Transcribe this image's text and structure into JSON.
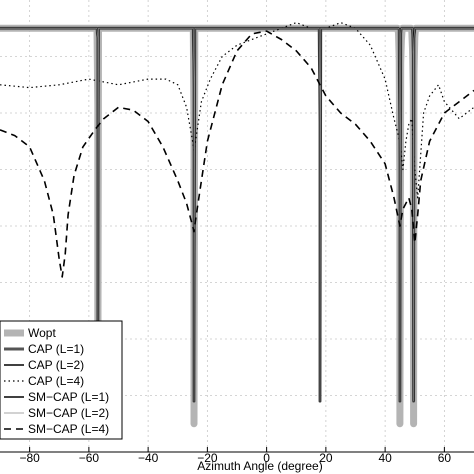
{
  "chart_data": {
    "type": "line",
    "xlabel": "Azimuth Angle (degree)",
    "ylabel": "",
    "title": "",
    "xlim": [
      -90,
      70
    ],
    "ylim": [
      -75,
      5
    ],
    "xticks": [
      -80,
      -60,
      -40,
      -20,
      0,
      20,
      40,
      60
    ],
    "xtick_labels": [
      "−80",
      "−60",
      "−40",
      "−20",
      "0",
      "20",
      "40",
      "60"
    ],
    "grid": true,
    "legend_position": "bottom-left",
    "series": [
      {
        "name": "Wopt",
        "color": "#b4b4b4",
        "style": "thick-solid",
        "nulls": [
          -57,
          -24.5,
          45,
          49.6
        ],
        "null_depth": -70
      },
      {
        "name": "CAP (L=1)",
        "color": "#555555",
        "style": "medium-solid",
        "nulls": [
          -57,
          -24.5,
          18,
          45,
          49.6
        ],
        "null_depth": -66
      },
      {
        "name": "CAP (L=2)",
        "color": "#000000",
        "style": "solid",
        "nulls": [
          -57,
          -24.5,
          18,
          45,
          49.6
        ],
        "null_depth": -66
      },
      {
        "name": "CAP (L=4)",
        "color": "#000000",
        "style": "dotted",
        "x": [
          -90,
          -80,
          -70,
          -60,
          -50,
          -40,
          -34,
          -30,
          -27,
          -25,
          -24.5,
          -24,
          -22,
          -19,
          -15,
          -10,
          -5,
          0,
          5,
          10,
          15,
          20,
          25,
          30,
          35,
          40,
          43,
          45,
          46,
          47,
          48,
          49,
          50,
          51,
          53,
          55,
          58,
          60,
          65,
          70
        ],
        "y": [
          -10,
          -10.5,
          -10,
          -9,
          -10,
          -9,
          -9,
          -10,
          -14,
          -20,
          -22,
          -20,
          -13,
          -9,
          -5,
          -3,
          -2,
          -1,
          0,
          1,
          0,
          0,
          1,
          0,
          -3,
          -9,
          -16,
          -20,
          -25,
          -20,
          -17,
          -16,
          -25,
          -30,
          -15,
          -12,
          -10,
          -13,
          -16,
          -14
        ]
      },
      {
        "name": "SM−CAP (L=1)",
        "color": "#000000",
        "style": "solid",
        "nulls": [
          -57,
          -24.5,
          18,
          45,
          49.6
        ],
        "null_depth": -66
      },
      {
        "name": "SM−CAP (L=2)",
        "color": "#888888",
        "style": "thin-solid",
        "nulls": [
          -57,
          -24.5,
          18,
          45,
          49.6
        ],
        "null_depth": -66
      },
      {
        "name": "SM−CAP (L=4)",
        "color": "#000000",
        "style": "dashed",
        "x": [
          -90,
          -85,
          -80,
          -75,
          -72,
          -70,
          -69,
          -68,
          -67,
          -65,
          -62,
          -58,
          -55,
          -50,
          -45,
          -40,
          -35,
          -30,
          -27,
          -25,
          -24.5,
          -24,
          -22,
          -20,
          -15,
          -10,
          -5,
          0,
          5,
          10,
          15,
          20,
          25,
          30,
          35,
          40,
          43,
          45,
          46,
          47,
          48,
          49,
          50,
          51,
          52,
          55,
          60,
          65,
          70
        ],
        "y": [
          -18,
          -19,
          -21,
          -27,
          -33,
          -41,
          -44,
          -40,
          -33,
          -26,
          -21,
          -18,
          -16,
          -14,
          -14.5,
          -16.5,
          -21,
          -27,
          -31,
          -35,
          -36,
          -34,
          -27,
          -20,
          -10,
          -4,
          -1,
          -0.5,
          -2,
          -4,
          -7,
          -12,
          -15,
          -17,
          -20,
          -24,
          -30,
          -35,
          -32,
          -31,
          -30,
          -32,
          -38,
          -33,
          -27,
          -20,
          -15,
          -13,
          -11
        ]
      }
    ],
    "legend": [
      "Wopt",
      "CAP (L=1)",
      "CAP (L=2)",
      "CAP (L=4)",
      "SM−CAP (L=1)",
      "SM−CAP (L=2)",
      "SM−CAP (L=4)"
    ]
  }
}
